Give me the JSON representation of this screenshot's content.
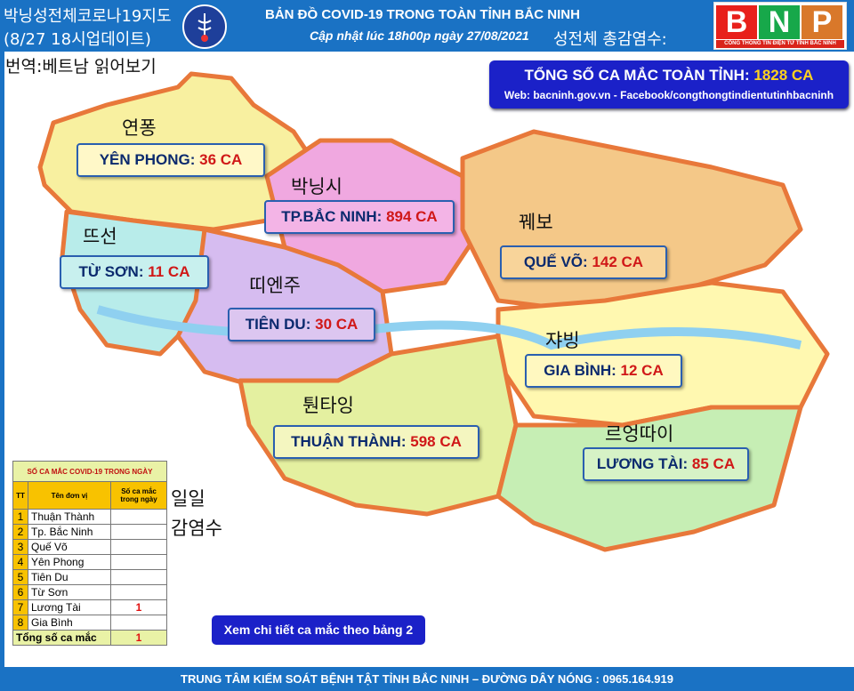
{
  "header": {
    "overlay_kr_line1": "박닝성전체코로나19지도",
    "overlay_kr_line2": "(8/27 18시업데이트)",
    "title": "BẢN ĐỒ COVID-19 TRONG TOÀN TỈNH BẮC NINH",
    "update": "Cập nhật lúc 18h00p ngày 27/08/2021",
    "overlay_kr_total": "성전체 총감염수:",
    "logo": {
      "letters": [
        "B",
        "N",
        "P"
      ],
      "colors": [
        "#e8201b",
        "#17a84a",
        "#d9782a"
      ],
      "subtitle": "CỔNG THÔNG TIN ĐIỆN TỬ TỈNH BẮC NINH"
    }
  },
  "translation_note": "번역:베트남 읽어보기",
  "total_box": {
    "label": "TỔNG SỐ CA MẮC TOÀN TỈNH:",
    "value": "1828 CA",
    "web": "Web: bacninh.gov.vn - Facebook/congthongtindientutinhbacninh"
  },
  "districts": [
    {
      "name": "YÊN PHONG:",
      "cases": "36 CA",
      "kr": "연퐁",
      "color": "#fff8c8"
    },
    {
      "name": "TP.BẮC NINH:",
      "cases": "894 CA",
      "kr": "박닝시",
      "color": "#f3b4e6"
    },
    {
      "name": "TỪ SƠN:",
      "cases": "11 CA",
      "kr": "뜨선",
      "color": "#c8f0ee"
    },
    {
      "name": "QUẾ VÕ:",
      "cases": "142 CA",
      "kr": "꿰보",
      "color": "#f8d49a"
    },
    {
      "name": "TIÊN DU:",
      "cases": "30 CA",
      "kr": "띠엔주",
      "color": "#dcc6f0"
    },
    {
      "name": "GIA BÌNH:",
      "cases": "12 CA",
      "kr": "쟈빙",
      "color": "#fff8c0"
    },
    {
      "name": "THUẬN THÀNH:",
      "cases": "598 CA",
      "kr": "퉌타잉",
      "color": "#f4f6c0"
    },
    {
      "name": "LƯƠNG TÀI:",
      "cases": "85 CA",
      "kr": "르엉따이",
      "color": "#d6f2c6"
    }
  ],
  "daily_table": {
    "caption": "SỐ CA MẮC COVID-19 TRONG NGÀY",
    "headers": [
      "TT",
      "Tên đơn vị",
      "Số ca mắc trong ngày"
    ],
    "rows": [
      {
        "no": "1",
        "unit": "Thuận Thành",
        "cases": ""
      },
      {
        "no": "2",
        "unit": "Tp. Bắc Ninh",
        "cases": ""
      },
      {
        "no": "3",
        "unit": "Quế Võ",
        "cases": ""
      },
      {
        "no": "4",
        "unit": "Yên Phong",
        "cases": ""
      },
      {
        "no": "5",
        "unit": "Tiên Du",
        "cases": ""
      },
      {
        "no": "6",
        "unit": "Từ Sơn",
        "cases": ""
      },
      {
        "no": "7",
        "unit": "Lương Tài",
        "cases": "1"
      },
      {
        "no": "8",
        "unit": "Gia Bình",
        "cases": ""
      }
    ],
    "total_label": "Tổng số ca mắc",
    "total_value": "1",
    "overlay_kr_1": "일일",
    "overlay_kr_2": "감염수"
  },
  "detail_button": "Xem chi tiết ca mắc theo bảng 2",
  "footer": "TRUNG TÂM KIỂM SOÁT BỆNH TẬT TỈNH BẮC NINH – ĐƯỜNG DÂY NÓNG : 0965.164.919"
}
